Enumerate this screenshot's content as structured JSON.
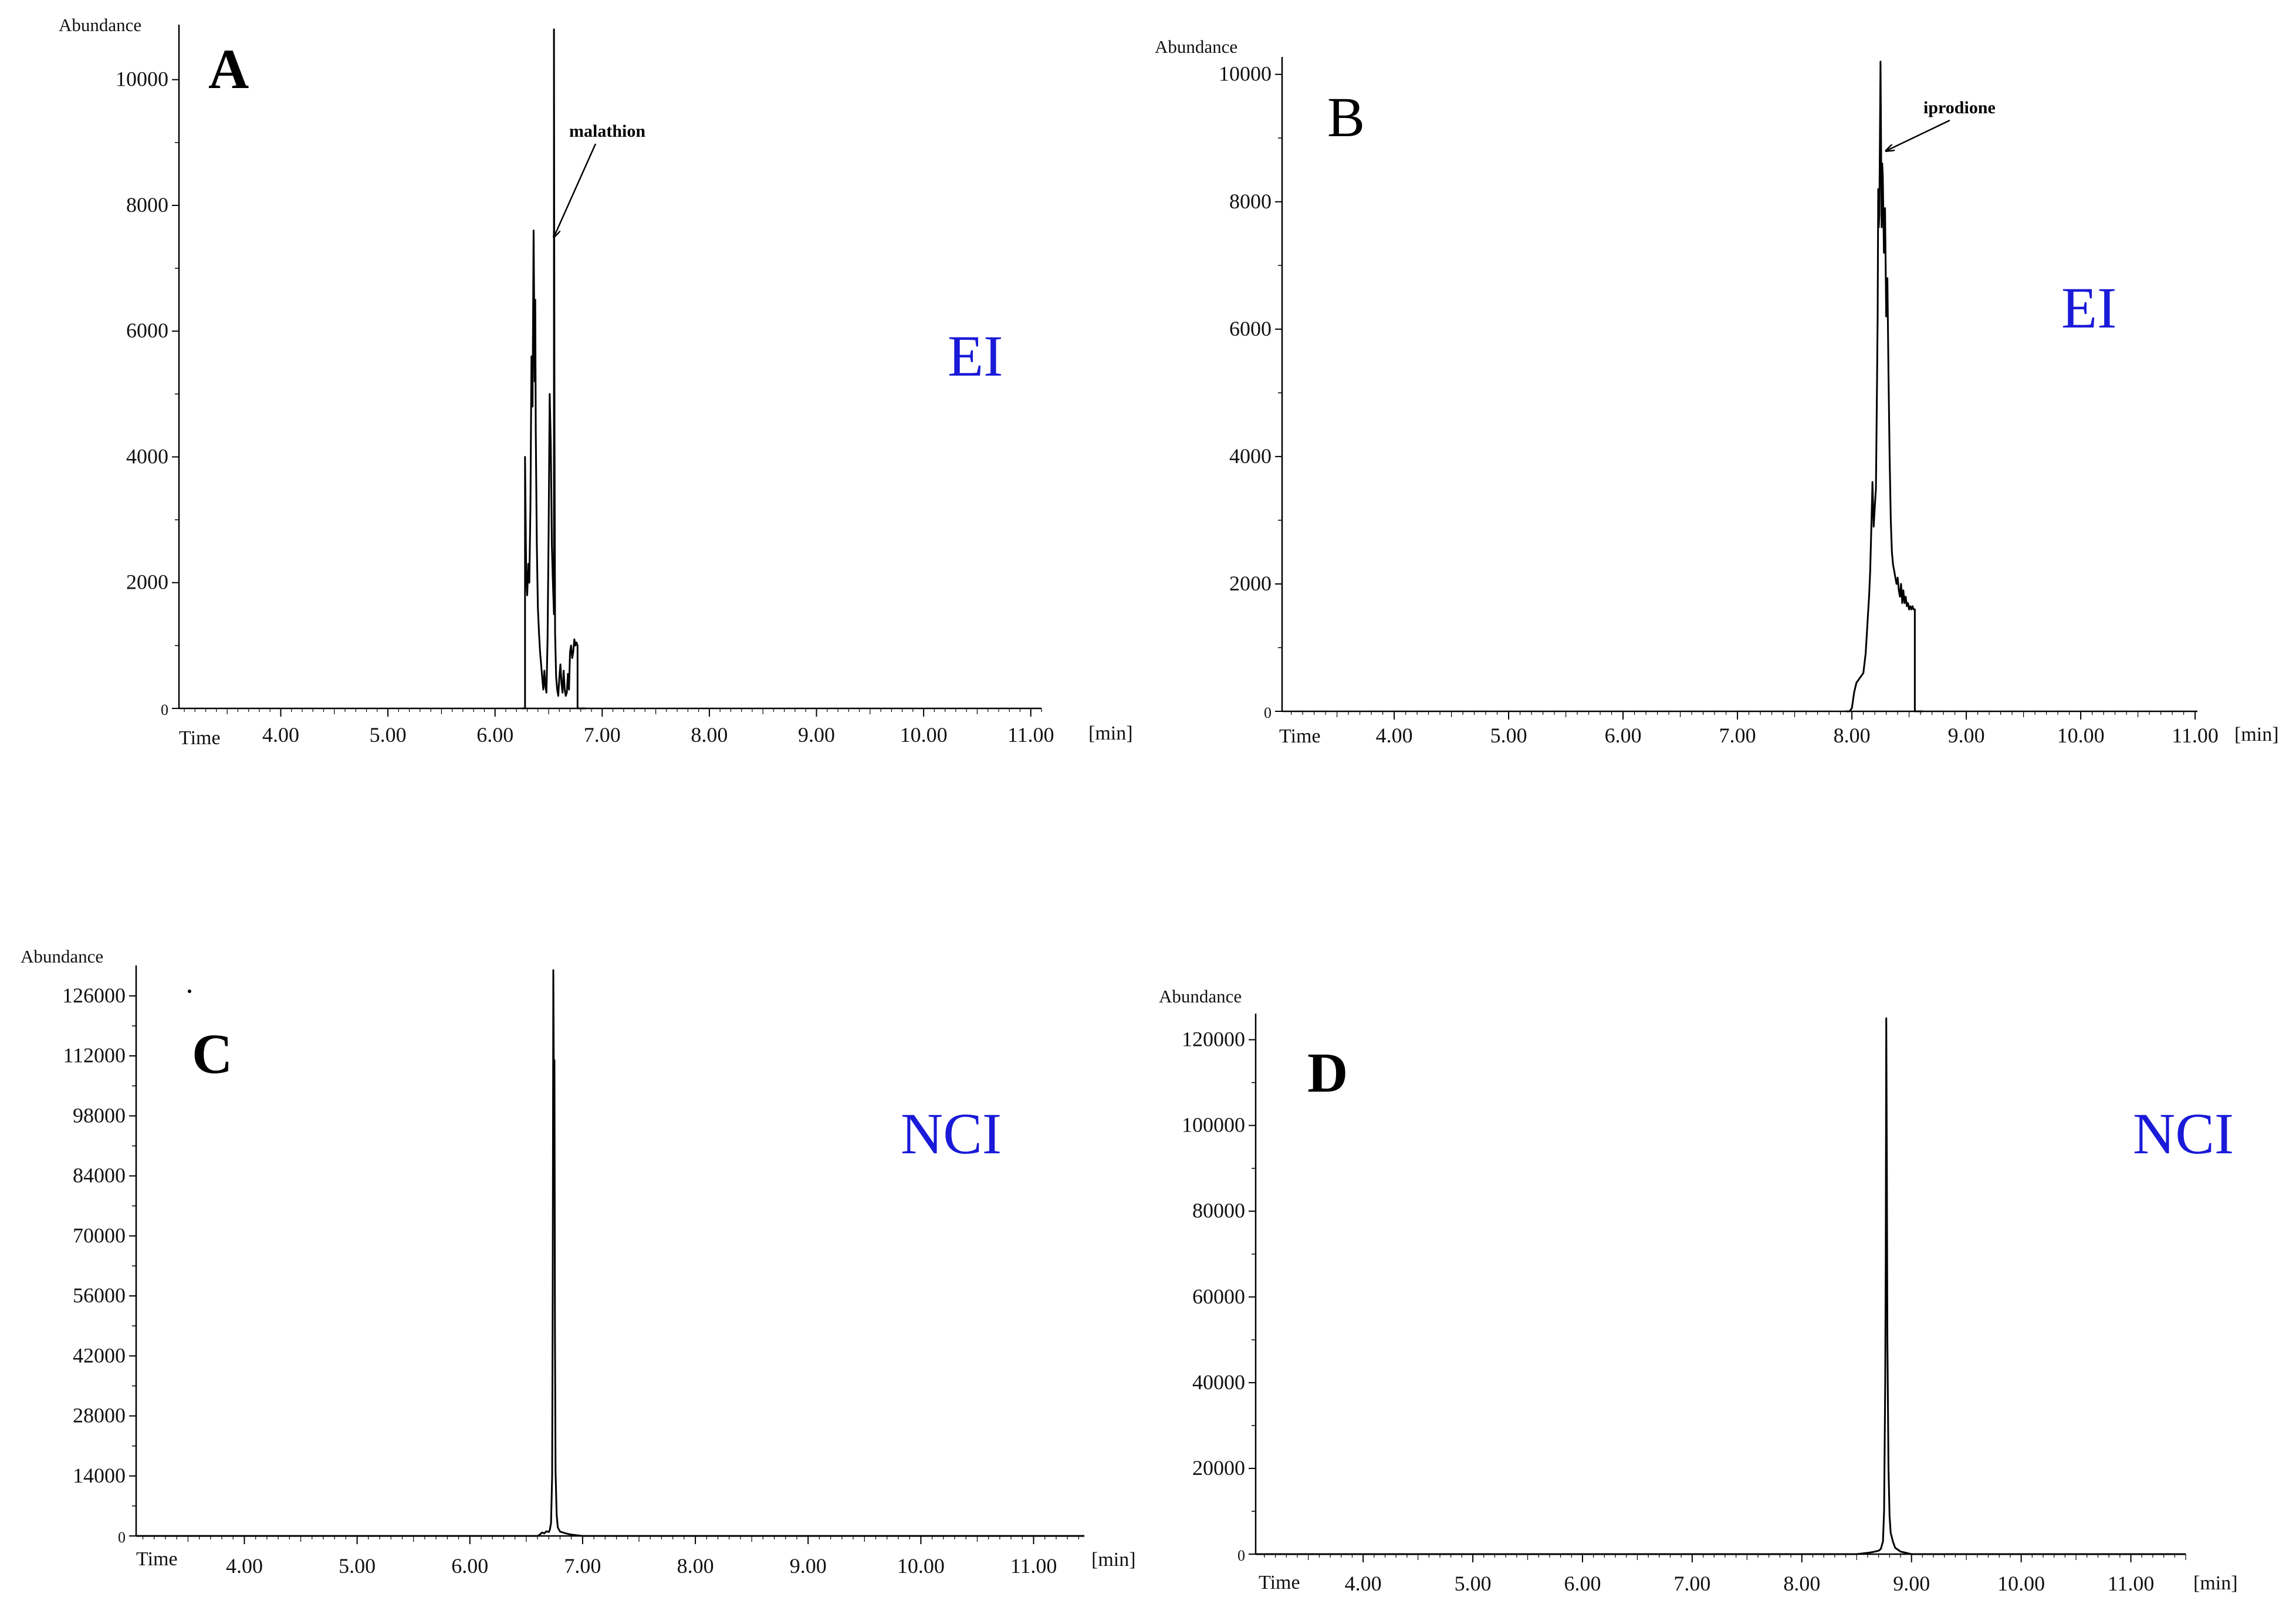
{
  "chart_data": [
    {
      "type": "line",
      "panel_label": "A",
      "mode_label": "EI",
      "ylabel": "Abundance",
      "xlabel": "Time",
      "x_unit": "[min]",
      "x_ticks": [
        "4.00",
        "5.00",
        "6.00",
        "7.00",
        "8.00",
        "9.00",
        "10.00",
        "11.00"
      ],
      "y_ticks": [
        "0",
        "2000",
        "4000",
        "6000",
        "8000",
        "10000"
      ],
      "xlim": [
        3.05,
        11.1
      ],
      "ylim": [
        0,
        10800
      ],
      "grid": false,
      "annotation": {
        "text": "malathion",
        "x": 6.55,
        "y": 7500
      },
      "series": [
        {
          "color": "#000000",
          "x": [
            6.25,
            6.28,
            6.28,
            6.29,
            6.3,
            6.31,
            6.32,
            6.33,
            6.34,
            6.35,
            6.36,
            6.37,
            6.375,
            6.38,
            6.39,
            6.4,
            6.41,
            6.42,
            6.43,
            6.44,
            6.45,
            6.46,
            6.47,
            6.48,
            6.49,
            6.5,
            6.51,
            6.52,
            6.53,
            6.54,
            6.55,
            6.55,
            6.555,
            6.56,
            6.57,
            6.58,
            6.59,
            6.6,
            6.61,
            6.62,
            6.63,
            6.64,
            6.65,
            6.66,
            6.67,
            6.68,
            6.69,
            6.7,
            6.71,
            6.72,
            6.73,
            6.74,
            6.75,
            6.76,
            6.77,
            6.77,
            6.85
          ],
          "y": [
            0,
            0,
            4000,
            2200,
            1800,
            2300,
            2000,
            3200,
            5600,
            4800,
            7600,
            5200,
            6500,
            4400,
            2600,
            1600,
            1200,
            900,
            700,
            500,
            300,
            600,
            350,
            250,
            1100,
            2800,
            5000,
            4200,
            2600,
            2000,
            1500,
            10800,
            4500,
            1200,
            500,
            300,
            200,
            500,
            700,
            400,
            250,
            600,
            300,
            200,
            250,
            550,
            300,
            900,
            1000,
            800,
            900,
            1100,
            1000,
            1050,
            1000,
            0,
            0
          ]
        }
      ]
    },
    {
      "type": "line",
      "panel_label": "B",
      "mode_label": "EI",
      "ylabel": "Abundance",
      "xlabel": "Time",
      "x_unit": "[min]",
      "x_ticks": [
        "4.00",
        "5.00",
        "6.00",
        "7.00",
        "8.00",
        "9.00",
        "10.00",
        "11.00"
      ],
      "y_ticks": [
        "0",
        "2000",
        "4000",
        "6000",
        "8000",
        "10000"
      ],
      "xlim": [
        3.02,
        11.02
      ],
      "ylim": [
        0,
        10200
      ],
      "grid": false,
      "annotation": {
        "text": "iprodione",
        "x": 8.3,
        "y": 8800
      },
      "series": [
        {
          "color": "#000000",
          "x": [
            7.95,
            7.98,
            8.0,
            8.02,
            8.04,
            8.06,
            8.08,
            8.1,
            8.12,
            8.13,
            8.14,
            8.15,
            8.16,
            8.17,
            8.18,
            8.19,
            8.2,
            8.21,
            8.22,
            8.225,
            8.23,
            8.235,
            8.24,
            8.245,
            8.25,
            8.26,
            8.265,
            8.27,
            8.28,
            8.29,
            8.3,
            8.31,
            8.32,
            8.33,
            8.34,
            8.35,
            8.36,
            8.37,
            8.38,
            8.39,
            8.4,
            8.41,
            8.42,
            8.43,
            8.44,
            8.45,
            8.46,
            8.47,
            8.48,
            8.49,
            8.5,
            8.51,
            8.52,
            8.53,
            8.54,
            8.55,
            8.55,
            8.62
          ],
          "y": [
            0,
            0,
            50,
            300,
            450,
            500,
            550,
            600,
            900,
            1200,
            1500,
            1800,
            2200,
            2900,
            3600,
            2900,
            3200,
            3500,
            5200,
            6200,
            8200,
            7600,
            7800,
            9000,
            10200,
            7600,
            8600,
            8400,
            7200,
            7900,
            6200,
            6800,
            5300,
            4000,
            3000,
            2500,
            2300,
            2200,
            2100,
            2000,
            2100,
            1900,
            1800,
            2000,
            1700,
            1900,
            1700,
            1800,
            1650,
            1700,
            1600,
            1650,
            1600,
            1650,
            1600,
            1600,
            0,
            0
          ]
        }
      ]
    },
    {
      "type": "line",
      "panel_label": "C",
      "mode_label": "NCI",
      "ylabel": "Abundance",
      "xlabel": "Time",
      "x_unit": "[min]",
      "x_ticks": [
        "4.00",
        "5.00",
        "6.00",
        "7.00",
        "8.00",
        "9.00",
        "10.00",
        "11.00"
      ],
      "y_ticks": [
        "0",
        "14000",
        "28000",
        "42000",
        "56000",
        "70000",
        "84000",
        "98000",
        "112000",
        "126000"
      ],
      "xlim": [
        3.04,
        11.45
      ],
      "ylim": [
        0,
        132000
      ],
      "grid": false,
      "series": [
        {
          "color": "#000000",
          "x": [
            3.04,
            6.0,
            6.6,
            6.62,
            6.64,
            6.66,
            6.68,
            6.7,
            6.71,
            6.72,
            6.73,
            6.735,
            6.74,
            6.745,
            6.75,
            6.755,
            6.76,
            6.77,
            6.78,
            6.8,
            6.85,
            6.9,
            7.0,
            11.45
          ],
          "y": [
            0,
            0,
            0,
            300,
            800,
            600,
            1100,
            900,
            1500,
            3000,
            14000,
            58000,
            132000,
            106000,
            111000,
            48000,
            15000,
            5000,
            2000,
            1000,
            600,
            300,
            0,
            0
          ]
        }
      ]
    },
    {
      "type": "line",
      "panel_label": "D",
      "mode_label": "NCI",
      "ylabel": "Abundance",
      "xlabel": "Time",
      "x_unit": "[min]",
      "x_ticks": [
        "4.00",
        "5.00",
        "6.00",
        "7.00",
        "8.00",
        "9.00",
        "10.00",
        "11.00"
      ],
      "y_ticks": [
        "0",
        "20000",
        "40000",
        "60000",
        "80000",
        "100000",
        "120000"
      ],
      "xlim": [
        3.02,
        11.5
      ],
      "ylim": [
        0,
        125000
      ],
      "grid": false,
      "series": [
        {
          "color": "#000000",
          "x": [
            3.02,
            8.5,
            8.6,
            8.65,
            8.7,
            8.72,
            8.74,
            8.75,
            8.76,
            8.765,
            8.77,
            8.775,
            8.78,
            8.79,
            8.8,
            8.81,
            8.83,
            8.85,
            8.9,
            9.0,
            11.5
          ],
          "y": [
            0,
            0,
            300,
            500,
            800,
            1200,
            3000,
            10000,
            40000,
            68000,
            125000,
            90000,
            50000,
            20000,
            9000,
            5000,
            3000,
            1500,
            600,
            0,
            0
          ]
        }
      ]
    }
  ]
}
